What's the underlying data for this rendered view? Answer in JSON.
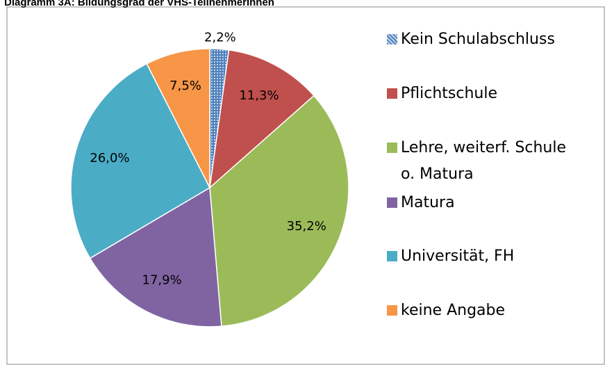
{
  "chart_data": {
    "type": "pie",
    "title": "Diagramm 3A: Bildungsgrad der VHS-TeilnehmerInnen",
    "categories": [
      "Kein Schulabschluss",
      "Pflichtschule",
      "Lehre, weiterf. Schule o. Matura",
      "Matura",
      "Universität, FH",
      "keine Angabe"
    ],
    "values": [
      2.2,
      11.3,
      35.2,
      17.9,
      26.0,
      7.5
    ],
    "value_labels": [
      "2,2%",
      "11,3%",
      "35,2%",
      "17,9%",
      "26,0%",
      "7,5%"
    ],
    "colors": [
      "#4f81bd",
      "#c0504d",
      "#9bbb59",
      "#8064a2",
      "#4bacc6",
      "#f79646"
    ],
    "legend": "right"
  }
}
